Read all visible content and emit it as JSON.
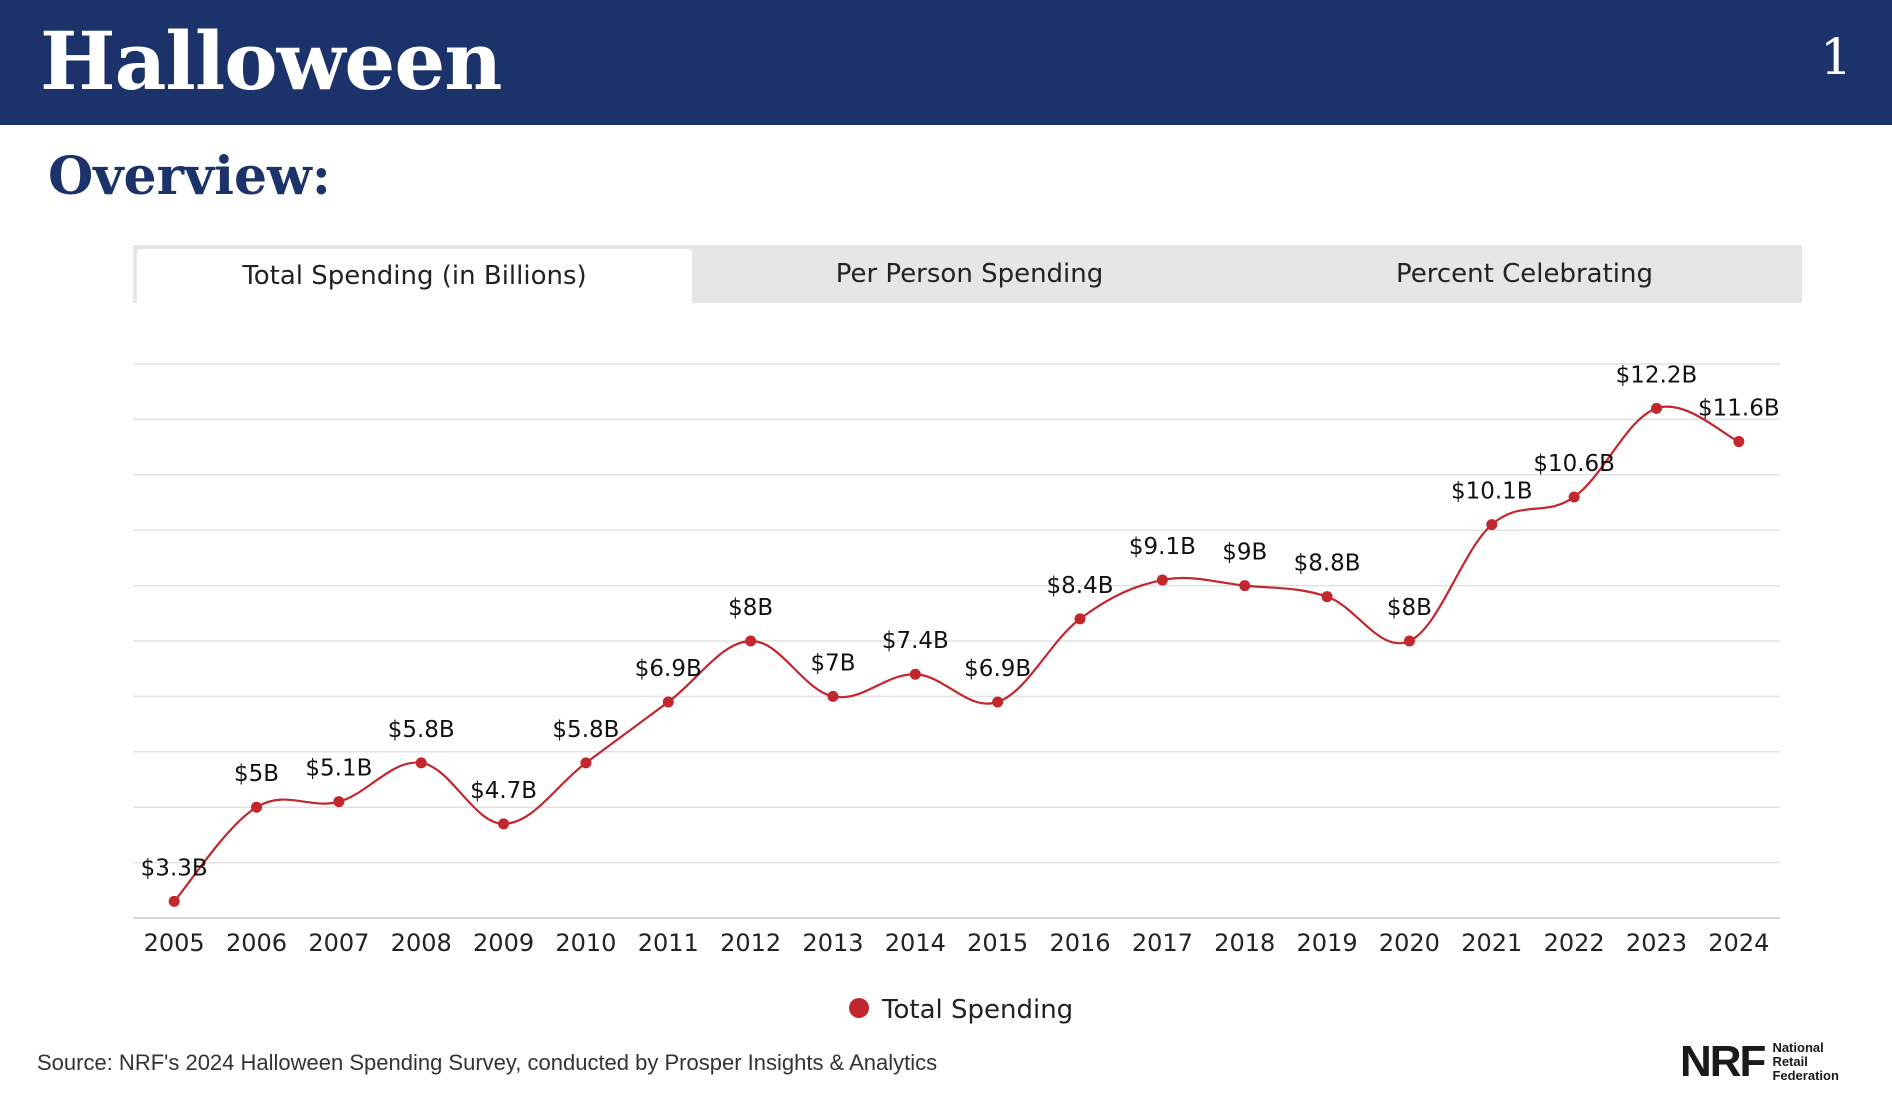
{
  "header": {
    "title": "Halloween",
    "page_number": "1"
  },
  "overview_heading": "Overview:",
  "tabs": [
    {
      "label": "Total Spending (in Billions)",
      "active": true
    },
    {
      "label": "Per Person Spending",
      "active": false
    },
    {
      "label": "Percent Celebrating",
      "active": false
    }
  ],
  "colors": {
    "header_bg": "#1b326b",
    "series": "#c1272d",
    "tab_bg": "#e6e6e6"
  },
  "chart_data": {
    "type": "line",
    "x": [
      "2005",
      "2006",
      "2007",
      "2008",
      "2009",
      "2010",
      "2011",
      "2012",
      "2013",
      "2014",
      "2015",
      "2016",
      "2017",
      "2018",
      "2019",
      "2020",
      "2021",
      "2022",
      "2023",
      "2024"
    ],
    "series": [
      {
        "name": "Total Spending",
        "values": [
          3.3,
          5,
          5.1,
          5.8,
          4.7,
          5.8,
          6.9,
          8,
          7,
          7.4,
          6.9,
          8.4,
          9.1,
          9,
          8.8,
          8,
          10.1,
          10.6,
          12.2,
          11.6
        ],
        "labels": [
          "$3.3B",
          "$5B",
          "$5.1B",
          "$5.8B",
          "$4.7B",
          "$5.8B",
          "$6.9B",
          "$8B",
          "$7B",
          "$7.4B",
          "$6.9B",
          "$8.4B",
          "$9.1B",
          "$9B",
          "$8.8B",
          "$8B",
          "$10.1B",
          "$10.6B",
          "$12.2B",
          "$11.6B"
        ]
      }
    ],
    "ylim": [
      3,
      13
    ],
    "grid": true,
    "legend": "bottom-center"
  },
  "source": "Source: NRF's 2024 Halloween Spending Survey, conducted by Prosper Insights & Analytics",
  "logo": {
    "mark": "NRF",
    "lines": [
      "National",
      "Retail",
      "Federation"
    ]
  }
}
